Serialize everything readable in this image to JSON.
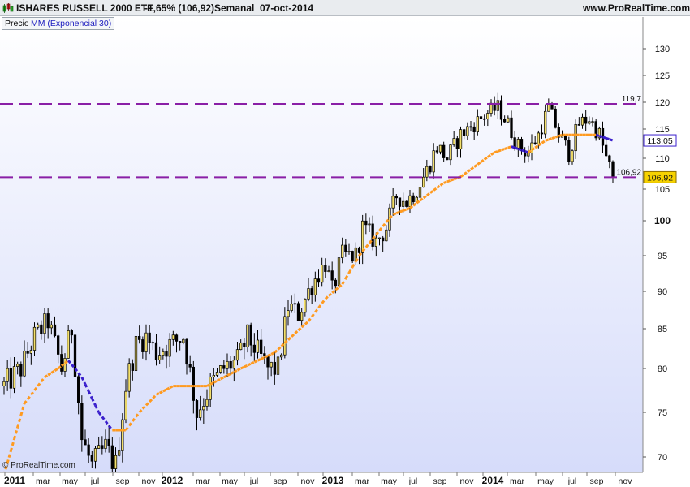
{
  "header": {
    "title": "ISHARES RUSSELL 2000 ETF",
    "change": "-1,65% (106,92)",
    "period": "Semanal",
    "date": "07-oct-2014",
    "site": "www.ProRealTime.com"
  },
  "legend": {
    "price": "Precio",
    "ma": "MM (Exponencial 30)"
  },
  "copyright": "© ProRealTime.com",
  "colors": {
    "background_top": "#ffffff",
    "background_bottom": "#d6dcfa",
    "candle_body": "#f4e06b",
    "candle_border": "#000000",
    "ma_up": "#ff9a1f",
    "ma_down": "#3a1fcc",
    "support_lines": "#8a1fa6",
    "last_price_badge": "#f6d200",
    "ma_badge": "#ffffff"
  },
  "chart_data": {
    "type": "candlestick",
    "instrument": "ISHARES RUSSELL 2000 ETF",
    "timeframe": "Semanal",
    "y_axis": {
      "range": [
        68,
        135
      ],
      "ticks": [
        70,
        75,
        80,
        85,
        90,
        95,
        100,
        105,
        110,
        115,
        120,
        125,
        130
      ],
      "position": "right"
    },
    "x_axis": {
      "labels": [
        "2011",
        "mar",
        "may",
        "jul",
        "sep",
        "nov",
        "2012",
        "mar",
        "may",
        "jul",
        "sep",
        "nov",
        "2013",
        "mar",
        "may",
        "jul",
        "sep",
        "nov",
        "2014",
        "mar",
        "may",
        "jul",
        "sep",
        "nov"
      ],
      "bold_labels": [
        "2011",
        "2012",
        "2013",
        "2014"
      ]
    },
    "horizontal_lines": [
      {
        "value": 119.7,
        "label": "119,7"
      },
      {
        "value": 106.92,
        "label": "106,92"
      }
    ],
    "last_price": {
      "value": 106.92,
      "label": "106,92"
    },
    "ma_last": {
      "value": 113.05,
      "label": "113,05"
    },
    "price_path": [
      [
        0,
        78
      ],
      [
        5,
        80
      ],
      [
        9,
        84
      ],
      [
        13,
        86
      ],
      [
        17,
        80
      ],
      [
        20,
        85
      ],
      [
        23,
        72
      ],
      [
        26,
        69
      ],
      [
        30,
        71
      ],
      [
        33,
        69
      ],
      [
        36,
        78
      ],
      [
        39,
        83
      ],
      [
        42,
        84
      ],
      [
        45,
        82
      ],
      [
        49,
        83
      ],
      [
        53,
        84
      ],
      [
        57,
        75
      ],
      [
        61,
        78
      ],
      [
        65,
        80
      ],
      [
        69,
        81
      ],
      [
        72,
        84
      ],
      [
        75,
        82
      ],
      [
        78,
        80
      ],
      [
        81,
        80
      ],
      [
        84,
        88
      ],
      [
        87,
        87
      ],
      [
        91,
        91
      ],
      [
        95,
        94
      ],
      [
        97,
        90
      ],
      [
        100,
        95
      ],
      [
        104,
        95
      ],
      [
        106,
        99
      ],
      [
        110,
        97
      ],
      [
        113,
        99
      ],
      [
        116,
        104
      ],
      [
        119,
        103
      ],
      [
        122,
        105
      ],
      [
        125,
        108
      ],
      [
        128,
        112
      ],
      [
        131,
        110
      ],
      [
        135,
        114
      ],
      [
        139,
        116
      ],
      [
        143,
        118
      ],
      [
        146,
        119
      ],
      [
        149,
        116
      ],
      [
        152,
        112
      ],
      [
        155,
        111
      ],
      [
        158,
        114
      ],
      [
        161,
        119
      ],
      [
        164,
        114
      ],
      [
        167,
        111
      ],
      [
        170,
        116
      ],
      [
        173,
        117
      ],
      [
        176,
        114
      ],
      [
        178,
        110
      ],
      [
        180,
        106.92
      ]
    ],
    "ma_path": [
      [
        0,
        68
      ],
      [
        6,
        76
      ],
      [
        12,
        79
      ],
      [
        16,
        80
      ],
      [
        19,
        81
      ],
      [
        23,
        79
      ],
      [
        28,
        75
      ],
      [
        32,
        73
      ],
      [
        36,
        73
      ],
      [
        40,
        75
      ],
      [
        45,
        77
      ],
      [
        50,
        78
      ],
      [
        55,
        78
      ],
      [
        60,
        78
      ],
      [
        65,
        79
      ],
      [
        70,
        80
      ],
      [
        75,
        81
      ],
      [
        80,
        82
      ],
      [
        85,
        84
      ],
      [
        90,
        86
      ],
      [
        95,
        89
      ],
      [
        100,
        91
      ],
      [
        105,
        95
      ],
      [
        110,
        98
      ],
      [
        115,
        101
      ],
      [
        120,
        102
      ],
      [
        125,
        104
      ],
      [
        130,
        106
      ],
      [
        135,
        107
      ],
      [
        140,
        109
      ],
      [
        145,
        111
      ],
      [
        150,
        112
      ],
      [
        155,
        111
      ],
      [
        160,
        113
      ],
      [
        165,
        114
      ],
      [
        170,
        114
      ],
      [
        175,
        114
      ],
      [
        180,
        113.05
      ]
    ]
  }
}
